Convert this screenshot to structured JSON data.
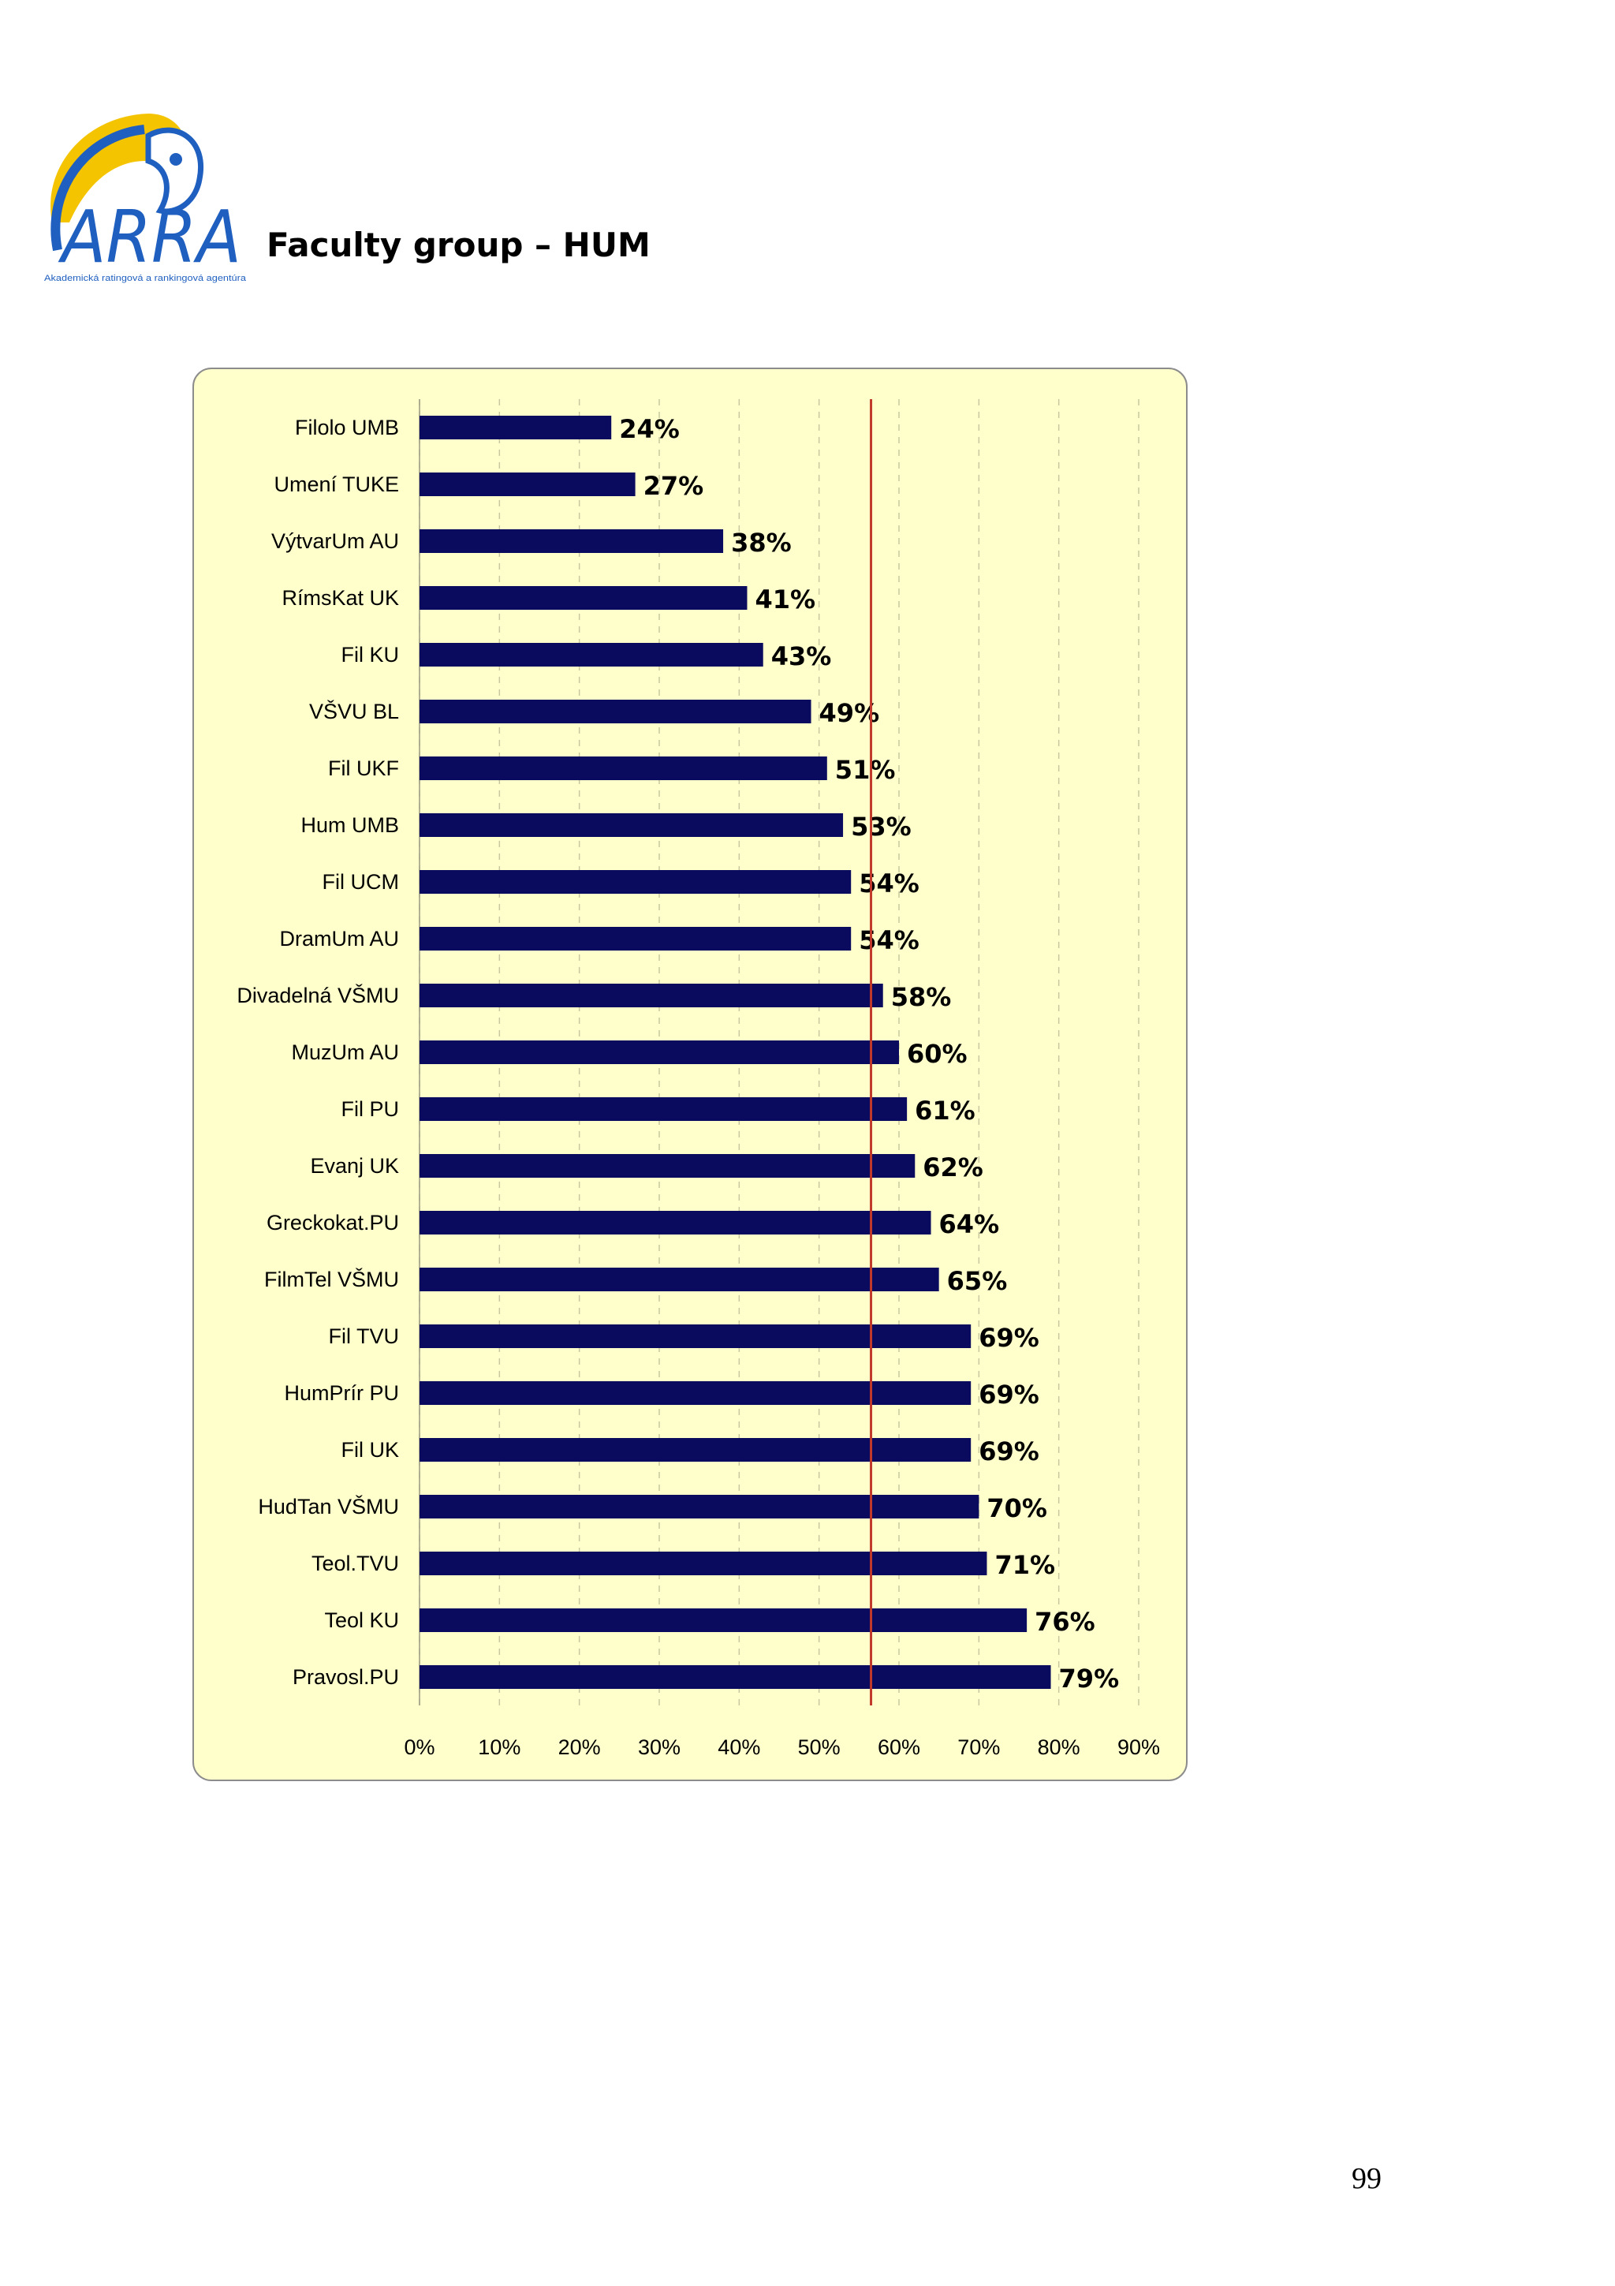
{
  "header": {
    "logo_text": "ARRA",
    "logo_subtitle": "Akademická ratingová a rankingová agentúra",
    "title": "Faculty group – HUM"
  },
  "page_number": "99",
  "colors": {
    "bar": "#0a0a5e",
    "reference_line": "#c0392b",
    "chart_background": "#ffffcc",
    "logo_yellow": "#f5c400",
    "logo_blue": "#1f5fbf"
  },
  "chart_data": {
    "type": "bar",
    "orientation": "horizontal",
    "categories": [
      "Filolo UMB",
      "Umení TUKE",
      "VýtvarUm AU",
      "RímsKat UK",
      "Fil KU",
      "VŠVU BL",
      "Fil UKF",
      "Hum UMB",
      "Fil UCM",
      "DramUm AU",
      "Divadelná VŠMU",
      "MuzUm AU",
      "Fil PU",
      "Evanj UK",
      "Greckokat.PU",
      "FilmTel VŠMU",
      "Fil TVU",
      "HumPrír PU",
      "Fil UK",
      "HudTan VŠMU",
      "Teol.TVU",
      "Teol KU",
      "Pravosl.PU"
    ],
    "values": [
      24,
      27,
      38,
      41,
      43,
      49,
      51,
      53,
      54,
      54,
      58,
      60,
      61,
      62,
      64,
      65,
      69,
      69,
      69,
      70,
      71,
      76,
      79
    ],
    "data_labels": [
      "24%",
      "27%",
      "38%",
      "41%",
      "43%",
      "49%",
      "51%",
      "53%",
      "54%",
      "54%",
      "58%",
      "60%",
      "61%",
      "62%",
      "64%",
      "65%",
      "69%",
      "69%",
      "69%",
      "70%",
      "71%",
      "76%",
      "79%"
    ],
    "x_ticks": [
      "0%",
      "10%",
      "20%",
      "30%",
      "40%",
      "50%",
      "60%",
      "70%",
      "80%",
      "90%"
    ],
    "xlim": [
      0,
      90
    ],
    "reference_line_value": 56.5,
    "grid": "vertical dashed",
    "title": "",
    "xlabel": "",
    "ylabel": ""
  }
}
